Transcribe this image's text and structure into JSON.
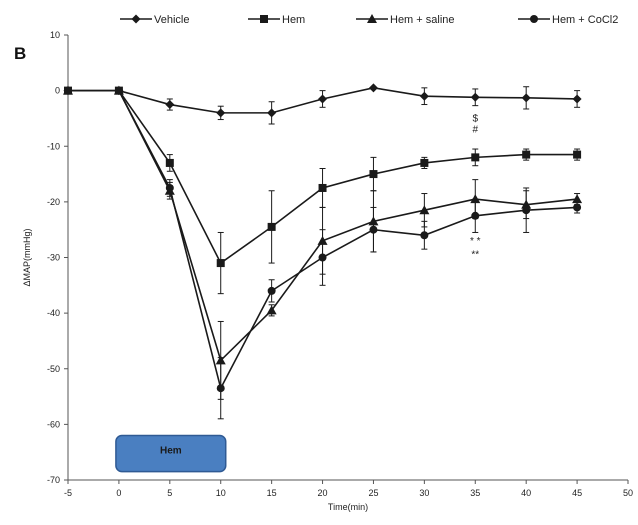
{
  "panel_label": "B",
  "chart_data": {
    "type": "line",
    "xlabel": "Time(min)",
    "ylabel": "ΔMAP(mmHg)",
    "xlim": [
      -5,
      50
    ],
    "ylim": [
      -70,
      10
    ],
    "x_ticks": [
      "-5",
      "0",
      "5",
      "10",
      "15",
      "20",
      "25",
      "30",
      "35",
      "40",
      "45",
      "50"
    ],
    "y_ticks": [
      "10",
      "0",
      "-10",
      "-20",
      "-30",
      "-40",
      "-50",
      "-60",
      "-70"
    ],
    "legend_position": "top",
    "series": [
      {
        "name": "Vehicle",
        "marker": "diamond",
        "x": [
          -5,
          0,
          5,
          10,
          15,
          20,
          25,
          30,
          35,
          40,
          45
        ],
        "y": [
          0,
          0,
          -2.5,
          -4,
          -4,
          -1.5,
          0.5,
          -1,
          -1.2,
          -1.3,
          -1.5
        ],
        "err": [
          0,
          0,
          1,
          1.2,
          2,
          1.5,
          0,
          1.5,
          1.5,
          2,
          1.5
        ]
      },
      {
        "name": "Hem",
        "marker": "square",
        "x": [
          -5,
          0,
          5,
          10,
          15,
          20,
          25,
          30,
          35,
          40,
          45
        ],
        "y": [
          0,
          0,
          -13,
          -31,
          -24.5,
          -17.5,
          -15,
          -13,
          -12,
          -11.5,
          -11.5
        ],
        "err": [
          0,
          0,
          1.5,
          5.5,
          6.5,
          3.5,
          3,
          1,
          1.5,
          1,
          1
        ]
      },
      {
        "name": "Hem + saline",
        "marker": "triangle",
        "x": [
          -5,
          0,
          5,
          10,
          15,
          20,
          25,
          30,
          35,
          40,
          45
        ],
        "y": [
          0,
          0,
          -18,
          -48.5,
          -39.5,
          -27,
          -23.5,
          -21.5,
          -19.5,
          -20.5,
          -19.5
        ],
        "err": [
          0,
          0,
          1.5,
          7,
          1,
          6,
          5.5,
          3,
          3.5,
          2.5,
          1
        ]
      },
      {
        "name": "Hem + CoCl2",
        "marker": "circle",
        "x": [
          -5,
          0,
          5,
          10,
          15,
          20,
          25,
          30,
          35,
          40,
          45
        ],
        "y": [
          0,
          0,
          -17.5,
          -53.5,
          -36,
          -30,
          -25,
          -26,
          -22.5,
          -21.5,
          -21
        ],
        "err": [
          0,
          0,
          1.5,
          5.5,
          2,
          5,
          4,
          2.5,
          3,
          4,
          1
        ]
      }
    ],
    "annotations": [
      {
        "text": "$",
        "x": 35,
        "y": -5
      },
      {
        "text": "#",
        "x": 35,
        "y": -7
      },
      {
        "text": "* *",
        "x": 35,
        "y": -27
      },
      {
        "text": "**",
        "x": 35,
        "y": -29.5
      }
    ],
    "hem_box": {
      "label": "Hem",
      "x_start": 0,
      "x_end": 10
    },
    "colors": {
      "series": "#1a1a1a",
      "box_fill": "#4a7fc1",
      "box_stroke": "#2f5a94",
      "axis": "#555555"
    }
  }
}
